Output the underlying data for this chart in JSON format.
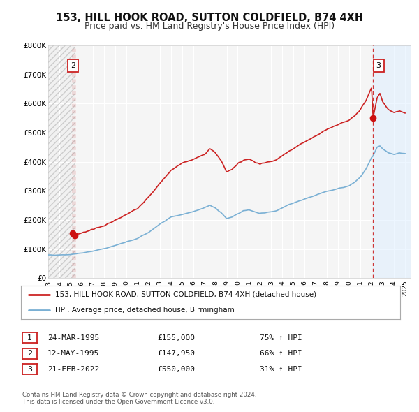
{
  "title": "153, HILL HOOK ROAD, SUTTON COLDFIELD, B74 4XH",
  "subtitle": "Price paid vs. HM Land Registry's House Price Index (HPI)",
  "title_fontsize": 10.5,
  "subtitle_fontsize": 9,
  "background_color": "#ffffff",
  "plot_bg_color": "#f5f5f5",
  "grid_color": "#ffffff",
  "hpi_line_color": "#7ab0d4",
  "hpi_fill_color": "#ddeeff",
  "price_line_color": "#cc2222",
  "marker_color": "#cc1111",
  "vline_color": "#cc2222",
  "hatch_color": "#cccccc",
  "ylim": [
    0,
    800000
  ],
  "yticks": [
    0,
    100000,
    200000,
    300000,
    400000,
    500000,
    600000,
    700000,
    800000
  ],
  "legend_label_price": "153, HILL HOOK ROAD, SUTTON COLDFIELD, B74 4XH (detached house)",
  "legend_label_hpi": "HPI: Average price, detached house, Birmingham",
  "transactions": [
    {
      "num": 1,
      "date": "24-MAR-1995",
      "date_dec": 1995.22,
      "price": 155000,
      "pct": "75%",
      "dir": "↑"
    },
    {
      "num": 2,
      "date": "12-MAY-1995",
      "date_dec": 1995.36,
      "price": 147950,
      "pct": "66%",
      "dir": "↑"
    },
    {
      "num": 3,
      "date": "21-FEB-2022",
      "date_dec": 2022.13,
      "price": 550000,
      "pct": "31%",
      "dir": "↑"
    }
  ],
  "footer_line1": "Contains HM Land Registry data © Crown copyright and database right 2024.",
  "footer_line2": "This data is licensed under the Open Government Licence v3.0.",
  "xmin": 1993.0,
  "xmax": 2025.5,
  "hatch_xmax": 1995.36,
  "shade_xmin": 2022.13
}
